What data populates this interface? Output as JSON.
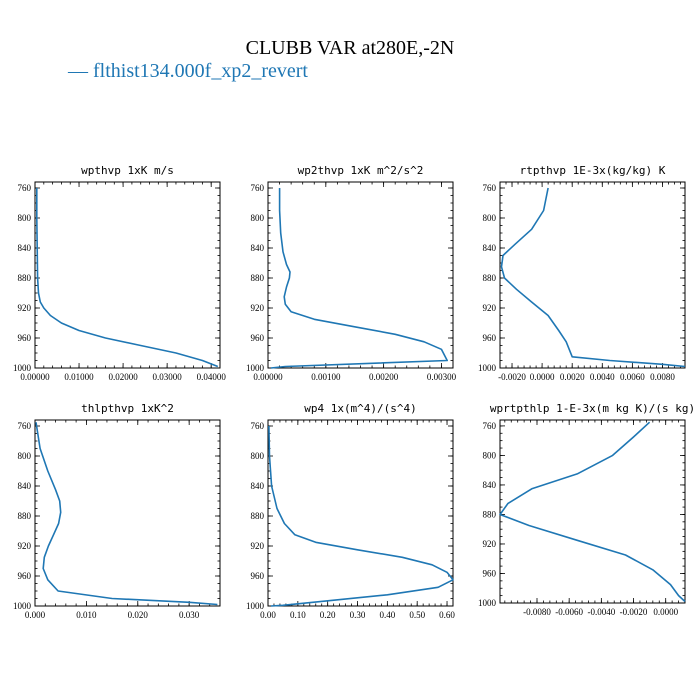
{
  "figure": {
    "title": "CLUBB VAR at280E,-2N",
    "legend_label": "— flthist134.000f_xp2_revert",
    "series_color": "#1f77b4"
  },
  "chart_data": [
    {
      "type": "line",
      "title": "wpthvp  1xK m/s",
      "xlim": [
        0,
        0.042
      ],
      "ylim": [
        1000,
        752
      ],
      "xticks": [
        "0.00000",
        "0.01000",
        "0.02000",
        "0.03000",
        "0.04000"
      ],
      "xtick_values": [
        0,
        0.01,
        0.02,
        0.03,
        0.04
      ],
      "yticks": [
        "760",
        "800",
        "840",
        "880",
        "920",
        "960",
        "1000"
      ],
      "ytick_values": [
        760,
        800,
        840,
        880,
        920,
        960,
        1000
      ],
      "series": [
        {
          "x": [
            0.0004,
            0.0004,
            0.0005,
            0.0006,
            0.0008,
            0.0012,
            0.002,
            0.0035,
            0.006,
            0.01,
            0.016,
            0.024,
            0.032,
            0.038,
            0.0415
          ],
          "y": [
            760,
            800,
            840,
            880,
            900,
            912,
            920,
            930,
            940,
            950,
            960,
            970,
            980,
            990,
            998
          ]
        }
      ]
    },
    {
      "type": "line",
      "title": "wp2thvp  1xK m^2/s^2",
      "xlim": [
        0,
        0.0032
      ],
      "ylim": [
        1000,
        752
      ],
      "xticks": [
        "0.00000",
        "0.00100",
        "0.00200",
        "0.00300"
      ],
      "xtick_values": [
        0,
        0.001,
        0.002,
        0.003
      ],
      "yticks": [
        "760",
        "800",
        "840",
        "880",
        "920",
        "960",
        "1000"
      ],
      "ytick_values": [
        760,
        800,
        840,
        880,
        920,
        960,
        1000
      ],
      "series": [
        {
          "x": [
            0.0002,
            0.0002,
            0.00022,
            0.00026,
            0.00032,
            0.00038,
            0.00037,
            0.00032,
            0.00028,
            0.0003,
            0.0004,
            0.0008,
            0.0015,
            0.0022,
            0.0027,
            0.003,
            0.0031,
            0.0003,
            5e-05
          ],
          "y": [
            760,
            790,
            820,
            845,
            862,
            872,
            880,
            892,
            905,
            915,
            925,
            935,
            945,
            955,
            965,
            975,
            990,
            998,
            1000
          ]
        }
      ]
    },
    {
      "type": "line",
      "title": "rtpthvp  1E-3x(kg/kg) K",
      "xlim": [
        -0.0028,
        0.0095
      ],
      "ylim": [
        1000,
        752
      ],
      "xticks": [
        "-0.0020",
        "0.0000",
        "0.0020",
        "0.0040",
        "0.0060",
        "0.0080"
      ],
      "xtick_values": [
        -0.002,
        0,
        0.002,
        0.004,
        0.006,
        0.008
      ],
      "yticks": [
        "760",
        "800",
        "840",
        "880",
        "920",
        "960",
        "1000"
      ],
      "ytick_values": [
        760,
        800,
        840,
        880,
        920,
        960,
        1000
      ],
      "series": [
        {
          "x": [
            0.0004,
            0.0001,
            -0.0007,
            -0.0018,
            -0.0026,
            -0.0027,
            -0.0025,
            -0.0017,
            -0.0007,
            0.0004,
            0.0011,
            0.0016,
            0.002,
            0.0045,
            0.008,
            0.0095
          ],
          "y": [
            760,
            790,
            815,
            835,
            850,
            865,
            880,
            895,
            912,
            930,
            950,
            965,
            985,
            990,
            995,
            998
          ]
        }
      ]
    },
    {
      "type": "line",
      "title": "thlpthvp  1xK^2",
      "xlim": [
        0,
        0.036
      ],
      "ylim": [
        1000,
        752
      ],
      "xticks": [
        "0.000",
        "0.010",
        "0.020",
        "0.030"
      ],
      "xtick_values": [
        0,
        0.01,
        0.02,
        0.03
      ],
      "yticks": [
        "760",
        "800",
        "840",
        "880",
        "920",
        "960",
        "1000"
      ],
      "ytick_values": [
        760,
        800,
        840,
        880,
        920,
        960,
        1000
      ],
      "series": [
        {
          "x": [
            0.0002,
            0.001,
            0.0025,
            0.004,
            0.0048,
            0.005,
            0.0046,
            0.0036,
            0.0026,
            0.0018,
            0.0016,
            0.0025,
            0.0045,
            0.015,
            0.03,
            0.0355
          ],
          "y": [
            755,
            790,
            820,
            845,
            860,
            875,
            890,
            905,
            920,
            935,
            950,
            965,
            980,
            990,
            995,
            998
          ]
        }
      ]
    },
    {
      "type": "line",
      "title": "wp4  1x(m^4)/(s^4)",
      "xlim": [
        0,
        0.62
      ],
      "ylim": [
        1000,
        752
      ],
      "xticks": [
        "0.00",
        "0.10",
        "0.20",
        "0.30",
        "0.40",
        "0.50",
        "0.60"
      ],
      "xtick_values": [
        0,
        0.1,
        0.2,
        0.3,
        0.4,
        0.5,
        0.6
      ],
      "yticks": [
        "760",
        "800",
        "840",
        "880",
        "920",
        "960",
        "1000"
      ],
      "ytick_values": [
        760,
        800,
        840,
        880,
        920,
        960,
        1000
      ],
      "series": [
        {
          "x": [
            0.003,
            0.005,
            0.012,
            0.03,
            0.055,
            0.09,
            0.16,
            0.3,
            0.45,
            0.55,
            0.6,
            0.62,
            0.57,
            0.4,
            0.2,
            0.05,
            0.01
          ],
          "y": [
            760,
            800,
            840,
            870,
            890,
            905,
            915,
            925,
            935,
            945,
            955,
            965,
            975,
            985,
            993,
            999,
            1000
          ]
        }
      ]
    },
    {
      "type": "line",
      "title": "wprtpthlp  1-E-3x(m kg K)/(s kg)",
      "xlim": [
        -0.0103,
        0.0012
      ],
      "ylim": [
        1000,
        752
      ],
      "xticks": [
        "-0.0080",
        "-0.0060",
        "-0.0040",
        "-0.0020",
        "0.0000"
      ],
      "xtick_values": [
        -0.008,
        -0.006,
        -0.004,
        -0.002,
        0
      ],
      "yticks": [
        "760",
        "800",
        "840",
        "880",
        "920",
        "960",
        "1000"
      ],
      "ytick_values": [
        760,
        800,
        840,
        880,
        920,
        960,
        1000
      ],
      "series": [
        {
          "x": [
            -0.001,
            -0.002,
            -0.0033,
            -0.0055,
            -0.0083,
            -0.0098,
            -0.0103,
            -0.0085,
            -0.0055,
            -0.0025,
            -0.0008,
            0.0003,
            0.0008,
            0.0012
          ],
          "y": [
            755,
            775,
            800,
            825,
            845,
            865,
            880,
            895,
            915,
            935,
            955,
            975,
            990,
            998
          ]
        }
      ]
    }
  ]
}
